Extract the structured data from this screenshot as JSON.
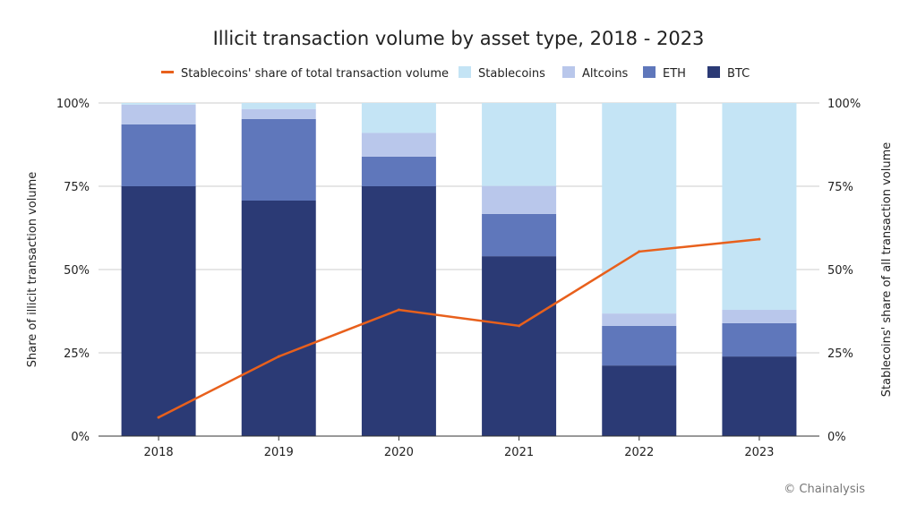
{
  "chart_data": {
    "type": "bar",
    "stacked": true,
    "title": "Illicit transaction volume by asset type, 2018 - 2023",
    "ylabel": "Share of illicit transaction volume",
    "y2label": "Stablecoins' share of all transaction volume",
    "ylim": [
      0,
      100
    ],
    "y2lim": [
      0,
      100
    ],
    "yticks": [
      "0%",
      "25%",
      "50%",
      "75%",
      "100%"
    ],
    "grid": true,
    "legend_position": "top",
    "categories": [
      "2018",
      "2019",
      "2020",
      "2021",
      "2022",
      "2023"
    ],
    "series": [
      {
        "name": "BTC",
        "color": "#2b3a75",
        "values": [
          75.0,
          70.7,
          75.0,
          54.0,
          21.2,
          23.9
        ]
      },
      {
        "name": "ETH",
        "color": "#5f77bb",
        "values": [
          18.6,
          24.5,
          8.9,
          12.7,
          11.9,
          10.0
        ]
      },
      {
        "name": "Altcoins",
        "color": "#b9c7eb",
        "values": [
          5.9,
          3.0,
          7.1,
          8.4,
          3.7,
          4.0
        ]
      },
      {
        "name": "Stablecoins",
        "color": "#c4e4f5",
        "values": [
          0.5,
          1.8,
          9.0,
          24.9,
          63.2,
          62.1
        ]
      }
    ],
    "line": {
      "name": "Stablecoins' share of total transaction volume",
      "color": "#e8601c",
      "axis": "right",
      "values": [
        5.6,
        23.9,
        37.9,
        33.1,
        55.4,
        59.1
      ]
    },
    "legend_order": [
      "Stablecoins' share of total transaction volume",
      "Stablecoins",
      "Altcoins",
      "ETH",
      "BTC"
    ]
  },
  "credit": "© Chainalysis"
}
